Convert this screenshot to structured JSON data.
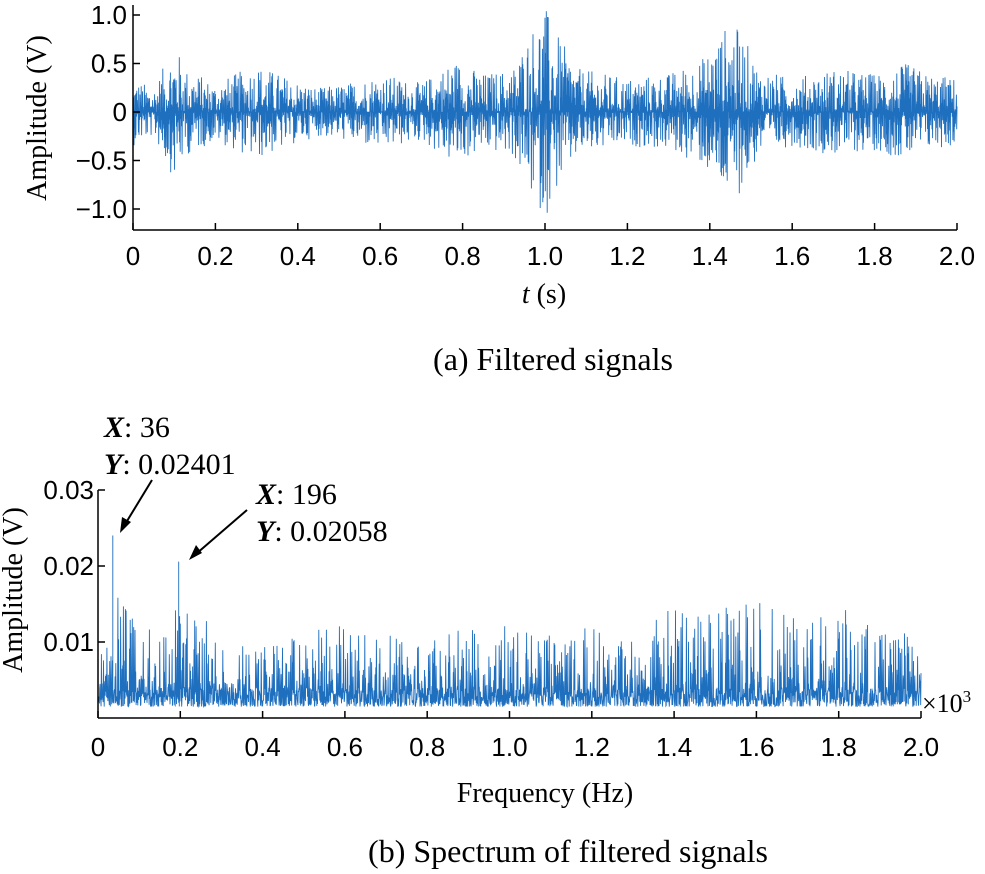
{
  "chart_data": [
    {
      "type": "line",
      "caption": "(a) Filtered signals",
      "xlabel_italic": "t",
      "xlabel_rest": " (s)",
      "ylabel": "Amplitude (V)",
      "xlim": [
        0,
        2.0
      ],
      "ylim": [
        -1.2,
        1.1
      ],
      "xticks": [
        "0",
        "0.2",
        "0.4",
        "0.6",
        "0.8",
        "1.0",
        "1.2",
        "1.4",
        "1.6",
        "1.8",
        "2.0"
      ],
      "yticks": [
        "-1.0",
        "-0.5",
        "0",
        "0.5",
        "1.0"
      ],
      "grid": false,
      "color": "#1f6fbf",
      "envelope": {
        "x": [
          0,
          0.05,
          0.1,
          0.13,
          0.2,
          0.3,
          0.38,
          0.45,
          0.52,
          0.6,
          0.7,
          0.78,
          0.85,
          0.92,
          0.97,
          1.0,
          1.03,
          1.08,
          1.2,
          1.3,
          1.38,
          1.45,
          1.48,
          1.52,
          1.6,
          1.7,
          1.8,
          1.88,
          1.93,
          2.0
        ],
        "amplitude": [
          0.35,
          0.25,
          0.7,
          0.45,
          0.3,
          0.5,
          0.35,
          0.25,
          0.3,
          0.4,
          0.3,
          0.55,
          0.4,
          0.45,
          0.9,
          1.1,
          0.8,
          0.45,
          0.35,
          0.4,
          0.55,
          0.95,
          0.8,
          0.45,
          0.35,
          0.45,
          0.4,
          0.5,
          0.4,
          0.35
        ]
      }
    },
    {
      "type": "line",
      "caption": "(b) Spectrum of filtered signals",
      "xlabel": "Frequency (Hz)",
      "ylabel": "Amplitude (V)",
      "xlim": [
        0,
        2.0
      ],
      "ylim": [
        0,
        0.03
      ],
      "x_scale_note": "×10",
      "x_scale_exp": "3",
      "xticks": [
        "0",
        "0.2",
        "0.4",
        "0.6",
        "0.8",
        "1.0",
        "1.2",
        "1.4",
        "1.6",
        "1.8",
        "2.0"
      ],
      "yticks": [
        "0.01",
        "0.02",
        "0.03"
      ],
      "grid": false,
      "color": "#1f6fbf",
      "envelope": {
        "x": [
          0,
          0.03,
          0.036,
          0.05,
          0.1,
          0.19,
          0.196,
          0.22,
          0.3,
          0.4,
          0.5,
          0.6,
          0.7,
          0.8,
          0.9,
          1.0,
          1.1,
          1.2,
          1.3,
          1.4,
          1.5,
          1.6,
          1.7,
          1.8,
          1.9,
          2.0
        ],
        "peak": [
          0.008,
          0.012,
          0.024,
          0.018,
          0.011,
          0.015,
          0.0206,
          0.015,
          0.011,
          0.01,
          0.011,
          0.013,
          0.011,
          0.01,
          0.012,
          0.013,
          0.011,
          0.012,
          0.011,
          0.015,
          0.014,
          0.016,
          0.013,
          0.015,
          0.012,
          0.011
        ]
      },
      "annotations": [
        {
          "x_label": "X",
          "x_value": ": 36",
          "y_label": "Y",
          "y_value": ": 0.02401",
          "point": [
            0.036,
            0.02401
          ]
        },
        {
          "x_label": "X",
          "x_value": ": 196",
          "y_label": "Y",
          "y_value": ": 0.02058",
          "point": [
            0.196,
            0.02058
          ]
        }
      ]
    }
  ]
}
